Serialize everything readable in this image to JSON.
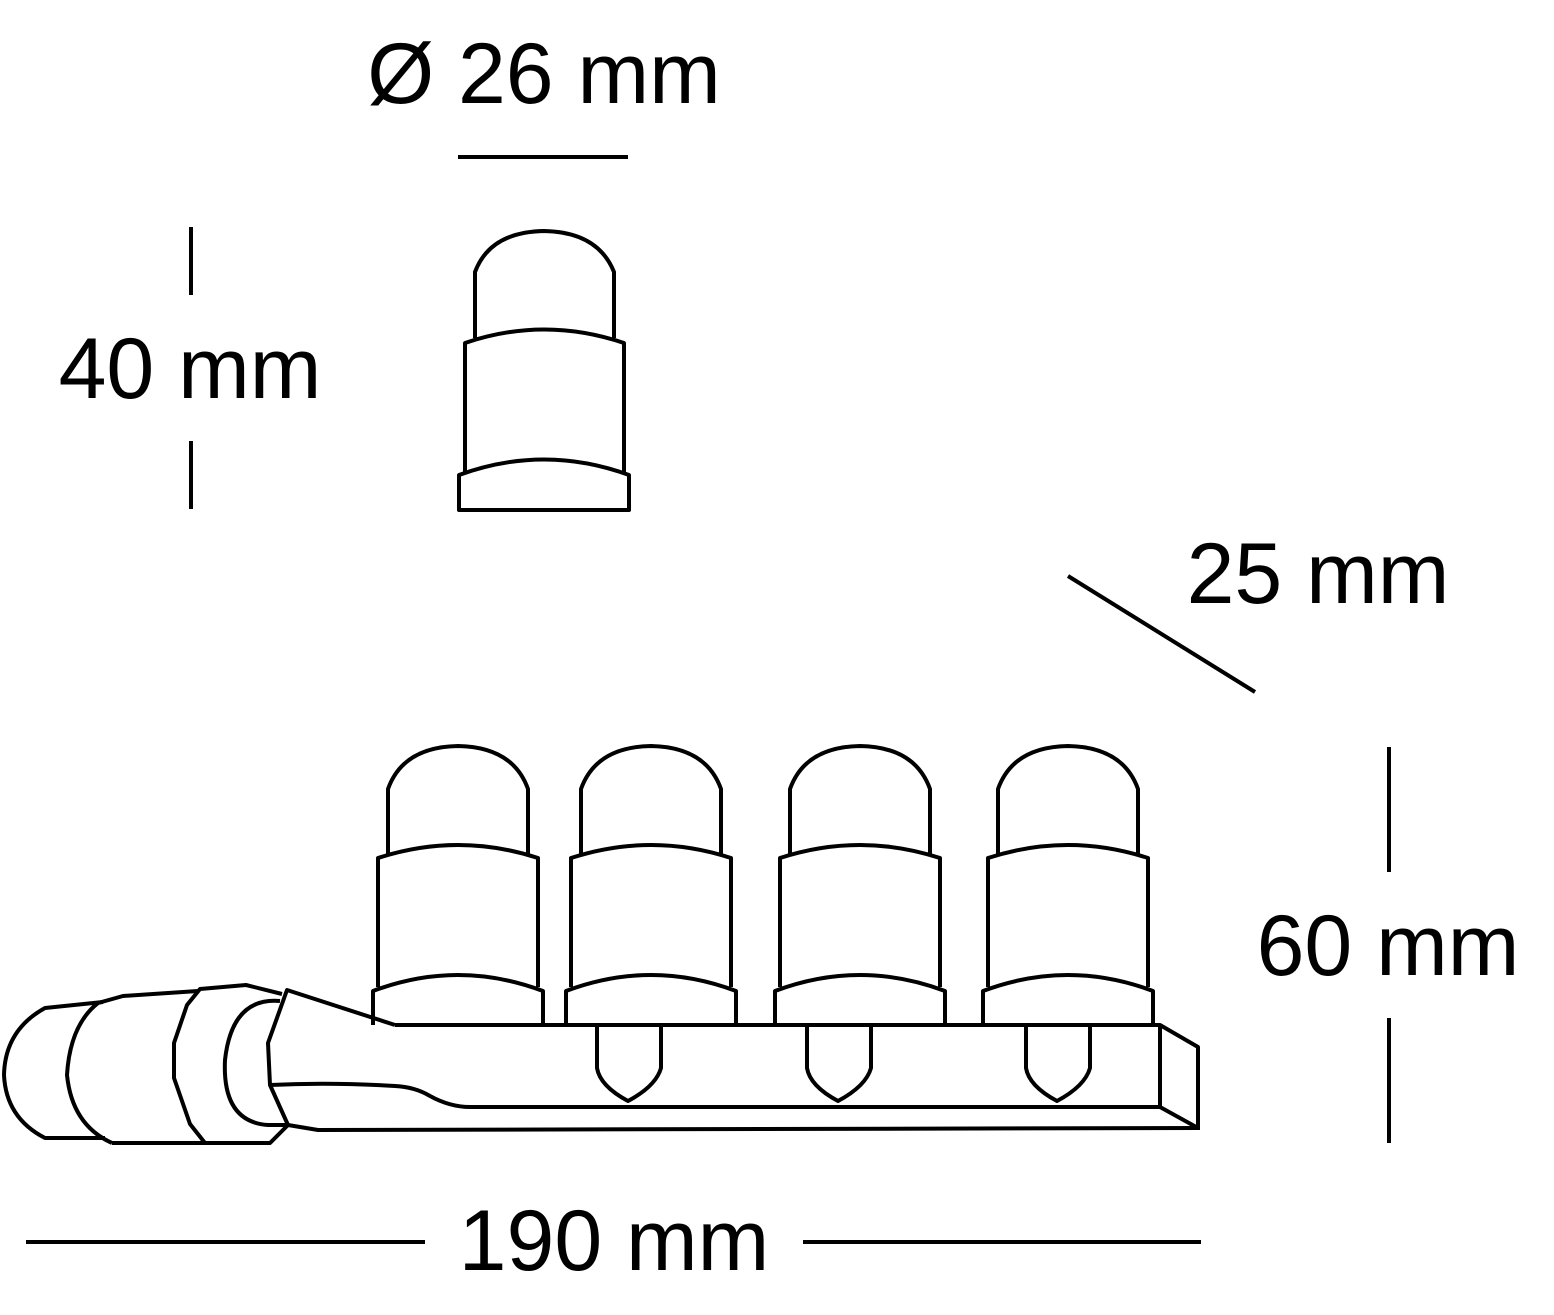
{
  "dimensions": {
    "diameter": "Ø 26 mm",
    "height_single": "40 mm",
    "depth": "25 mm",
    "height_total": "60 mm",
    "width_total": "190 mm"
  },
  "colors": {
    "line": "#000000",
    "background": "#ffffff"
  }
}
